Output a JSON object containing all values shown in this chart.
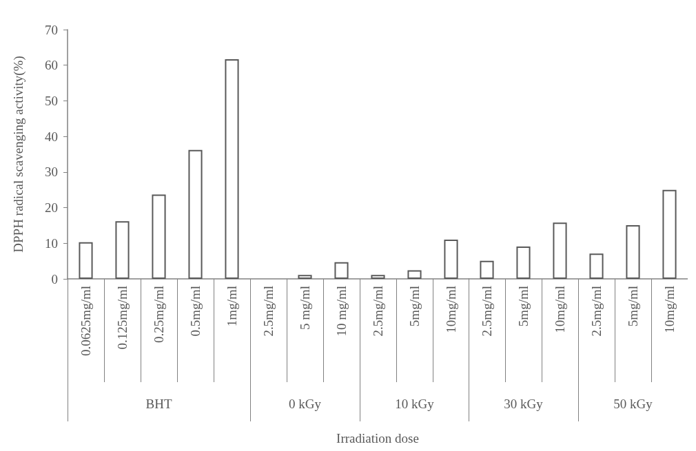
{
  "chart_data": [
    {
      "type": "bar",
      "xlabel": "BHT",
      "ylabel": "DPPH radical scavenging activity(%)",
      "categories": [
        "0.0625mg/ml",
        "0.125mg/ml",
        "0.25mg/ml",
        "0.5mg/ml",
        "1mg/ml"
      ],
      "series": [
        {
          "color": "#ffffff",
          "values": [
            10.3,
            16.2,
            23.7,
            36.2,
            61.7
          ]
        }
      ],
      "ylim": [
        0,
        70
      ],
      "yticks": [
        0,
        10,
        20,
        30,
        40,
        50,
        60,
        70
      ]
    },
    {
      "type": "bar",
      "xlabel": "0 kGy",
      "categories": [
        "2.5mg/ml",
        "5 mg/ml",
        "10 mg/ml"
      ],
      "series": [
        {
          "color": "#ffffff",
          "values": [
            null,
            1.1,
            4.7
          ]
        }
      ],
      "ylim": [
        0,
        70
      ],
      "yticks": [
        0,
        10,
        20,
        30,
        40,
        50,
        60,
        70
      ],
      "tick_labels": "x"
    },
    {
      "type": "bar",
      "xlabel": "10 kGy",
      "categories": [
        "2.5mg/ml",
        "5mg/ml",
        "10mg/ml"
      ],
      "series": [
        {
          "color": "#ffffff",
          "values": [
            1.1,
            2.4,
            11.0
          ]
        }
      ],
      "ylim": [
        0,
        70
      ],
      "yticks": [
        0,
        10,
        20,
        30,
        40,
        50,
        60,
        70
      ],
      "tick_labels": "x",
      "annotations": [
        "Irradiation dose"
      ]
    },
    {
      "type": "bar",
      "xlabel": "30 kGy",
      "categories": [
        "2.5mg/ml",
        "5mg/ml",
        "10mg/ml"
      ],
      "series": [
        {
          "color": "#ffffff",
          "values": [
            5.1,
            9.1,
            15.8
          ]
        }
      ],
      "ylim": [
        0,
        70
      ],
      "yticks": [
        0,
        10,
        20,
        30,
        40,
        50,
        60,
        70
      ],
      "tick_labels": "x"
    },
    {
      "type": "bar",
      "xlabel": "50 kGy",
      "categories": [
        "2.5mg/ml",
        "5mg/ml",
        "10mg/ml"
      ],
      "series": [
        {
          "color": "#ffffff",
          "values": [
            7.1,
            15.1,
            25.0
          ]
        }
      ],
      "ylim": [
        0,
        70
      ],
      "yticks": [
        0,
        10,
        20,
        30,
        40,
        50,
        60,
        70
      ],
      "tick_labels": "x"
    }
  ]
}
